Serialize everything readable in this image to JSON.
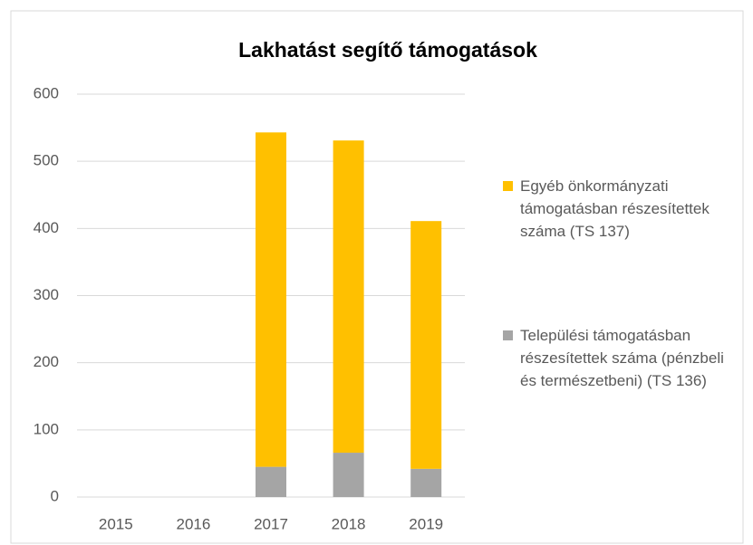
{
  "chart_data": {
    "type": "stacked_bar",
    "title": "Lakhatást segítő támogatások",
    "categories": [
      "2015",
      "2016",
      "2017",
      "2018",
      "2019"
    ],
    "series": [
      {
        "name": "Települési támogatásban részesítettek száma (pénzbeli és természetbeni) (TS 136)",
        "color": "#a5a5a5",
        "values": [
          0,
          0,
          45,
          66,
          42
        ]
      },
      {
        "name": "Egyéb önkormányzati támogatásban részesítettek száma (TS 137)",
        "color": "#ffc000",
        "values": [
          0,
          0,
          498,
          465,
          369
        ]
      }
    ],
    "ylim": [
      0,
      600
    ],
    "yticks": [
      0,
      100,
      200,
      300,
      400,
      500,
      600
    ],
    "grid": true
  }
}
